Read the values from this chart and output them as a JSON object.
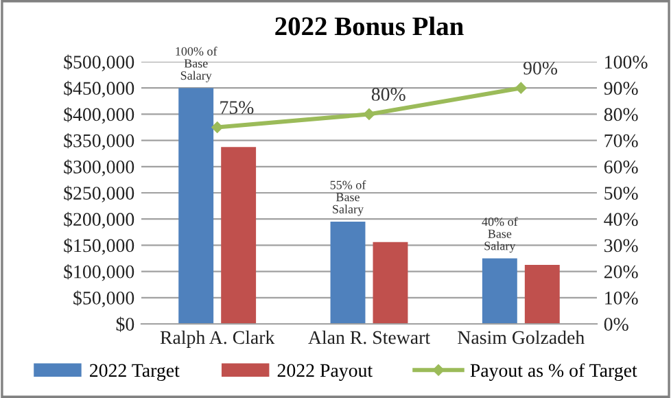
{
  "chart_data": {
    "type": "bar",
    "title": "2022 Bonus Plan",
    "categories": [
      "Ralph A. Clark",
      "Alan R. Stewart",
      "Nasim Golzadeh"
    ],
    "series": [
      {
        "name": "2022 Target",
        "color": "#4f81bd",
        "values": [
          450000,
          195000,
          125000
        ]
      },
      {
        "name": "2022 Payout",
        "color": "#c0504d",
        "values": [
          337500,
          156000,
          112500
        ]
      },
      {
        "name": "Payout as % of Target",
        "type": "line",
        "axis": "y2",
        "color": "#9bbb59",
        "values": [
          75,
          80,
          90
        ],
        "value_labels": [
          "75%",
          "80%",
          "90%"
        ],
        "marker": "diamond"
      }
    ],
    "ylim": [
      0,
      500000
    ],
    "yticks": [
      {
        "value": 0,
        "label": "$0"
      },
      {
        "value": 50000,
        "label": "$50,000"
      },
      {
        "value": 100000,
        "label": "$100,000"
      },
      {
        "value": 150000,
        "label": "$150,000"
      },
      {
        "value": 200000,
        "label": "$200,000"
      },
      {
        "value": 250000,
        "label": "$250,000"
      },
      {
        "value": 300000,
        "label": "$300,000"
      },
      {
        "value": 350000,
        "label": "$350,000"
      },
      {
        "value": 400000,
        "label": "$400,000"
      },
      {
        "value": 450000,
        "label": "$450,000"
      },
      {
        "value": 500000,
        "label": "$500,000"
      }
    ],
    "y2lim": [
      0,
      100
    ],
    "y2ticks": [
      {
        "value": 0,
        "label": "0%"
      },
      {
        "value": 10,
        "label": "10%"
      },
      {
        "value": 20,
        "label": "20%"
      },
      {
        "value": 30,
        "label": "30%"
      },
      {
        "value": 40,
        "label": "40%"
      },
      {
        "value": 50,
        "label": "50%"
      },
      {
        "value": 60,
        "label": "60%"
      },
      {
        "value": 70,
        "label": "70%"
      },
      {
        "value": 80,
        "label": "80%"
      },
      {
        "value": 90,
        "label": "90%"
      },
      {
        "value": 100,
        "label": "100%"
      }
    ],
    "annotations": [
      {
        "text": "100% of\nBase\nSalary",
        "x": "Ralph A. Clark",
        "y": 450000
      },
      {
        "text": "55% of\nBase\nSalary",
        "x": "Alan R. Stewart",
        "y": 195000
      },
      {
        "text": "40% of\nBase\nSalary",
        "x": "Nasim Golzadeh",
        "y": 125000
      }
    ],
    "grid": "y",
    "legend": "bottom"
  }
}
